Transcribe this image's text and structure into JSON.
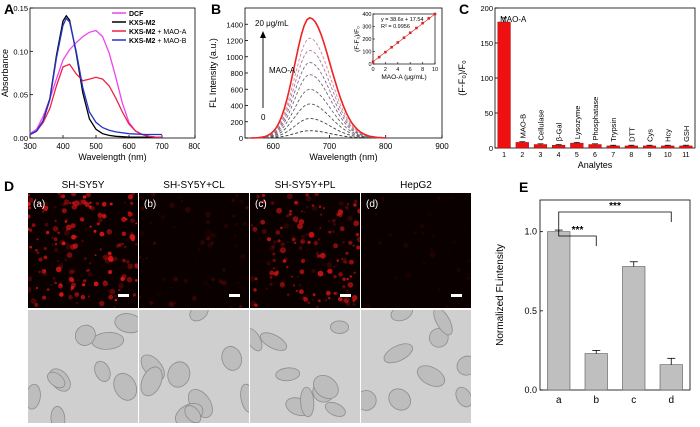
{
  "panel_labels": {
    "a": "A",
    "b": "B",
    "c": "C",
    "d": "D",
    "e": "E"
  },
  "chart_data": [
    {
      "id": "A",
      "type": "line",
      "xlabel": "Wavelength (nm)",
      "ylabel": "Absorbance",
      "xlim": [
        300,
        800
      ],
      "ylim": [
        0,
        0.15
      ],
      "xticks": [
        300,
        400,
        500,
        600,
        700,
        800
      ],
      "yticks": [
        0.0,
        0.05,
        0.1,
        0.15
      ],
      "legend_position": "top-right",
      "legend": [
        {
          "bold": "DCF",
          "rest": ""
        },
        {
          "bold": "KXS-M2",
          "rest": ""
        },
        {
          "bold": "KXS-M2",
          "rest": " + MAO-A"
        },
        {
          "bold": "KXS-M2",
          "rest": " + MAO-B"
        }
      ],
      "colors": [
        "#ee44ee",
        "#000000",
        "#ee2244",
        "#2233cc"
      ],
      "series": [
        {
          "x": [
            300,
            320,
            340,
            360,
            380,
            400,
            420,
            440,
            460,
            480,
            500,
            520,
            540,
            560,
            580,
            600,
            620,
            640,
            660,
            680,
            700
          ],
          "y": [
            0.005,
            0.01,
            0.025,
            0.045,
            0.068,
            0.09,
            0.102,
            0.11,
            0.117,
            0.122,
            0.124,
            0.117,
            0.098,
            0.07,
            0.04,
            0.018,
            0.008,
            0.004,
            0.002,
            0.001,
            0.001
          ]
        },
        {
          "x": [
            300,
            320,
            340,
            360,
            380,
            400,
            410,
            420,
            440,
            460,
            480,
            500,
            520,
            540,
            560,
            600,
            650,
            700
          ],
          "y": [
            0.004,
            0.008,
            0.02,
            0.045,
            0.095,
            0.135,
            0.141,
            0.136,
            0.098,
            0.052,
            0.022,
            0.01,
            0.005,
            0.003,
            0.002,
            0.001,
            0.001,
            0.001
          ]
        },
        {
          "x": [
            300,
            320,
            340,
            360,
            380,
            400,
            420,
            440,
            460,
            480,
            500,
            520,
            540,
            560,
            580,
            600,
            620,
            640,
            660,
            680,
            700
          ],
          "y": [
            0.004,
            0.008,
            0.018,
            0.034,
            0.06,
            0.082,
            0.085,
            0.074,
            0.066,
            0.068,
            0.07,
            0.068,
            0.06,
            0.046,
            0.03,
            0.016,
            0.008,
            0.004,
            0.002,
            0.001,
            0.001
          ]
        },
        {
          "x": [
            300,
            320,
            340,
            360,
            380,
            400,
            410,
            420,
            440,
            460,
            480,
            500,
            520,
            540,
            560,
            600,
            650,
            700
          ],
          "y": [
            0.004,
            0.008,
            0.02,
            0.044,
            0.092,
            0.13,
            0.138,
            0.134,
            0.1,
            0.058,
            0.03,
            0.018,
            0.012,
            0.009,
            0.007,
            0.005,
            0.004,
            0.004
          ]
        }
      ]
    },
    {
      "id": "B",
      "type": "line",
      "xlabel": "Wavelength (nm)",
      "ylabel": "FL Intensity (a.u.)",
      "xlim": [
        550,
        900
      ],
      "ylim": [
        0,
        1600
      ],
      "xticks": [
        600,
        700,
        800,
        900
      ],
      "yticks": [
        0,
        200,
        400,
        600,
        800,
        1000,
        1200,
        1400
      ],
      "annotation_top": "20 μg/mL",
      "annotation_label": "MAO-A",
      "annotation_bottom": "0",
      "peak_x": 665,
      "peak_values": [
        90,
        240,
        420,
        600,
        780,
        930,
        1080,
        1230,
        1480
      ],
      "series_colors": [
        "#333333",
        "#444444",
        "#555555",
        "#666666",
        "#776677",
        "#886688",
        "#aa7799",
        "#cc8899",
        "#ee2222"
      ],
      "inset": {
        "type": "scatter",
        "xlabel": "MAO-A (μg/mL)",
        "ylabel": "(F-F₀)/F₀",
        "equation": "y = 38.6x + 17.54",
        "r2": "R² = 0.9956",
        "xlim": [
          0,
          10
        ],
        "ylim": [
          0,
          400
        ],
        "xticks": [
          0,
          2,
          4,
          6,
          8,
          10
        ],
        "yticks": [
          0,
          100,
          200,
          300,
          400
        ],
        "x": [
          0,
          1,
          2,
          3,
          4,
          5,
          6,
          7,
          8,
          9,
          10
        ],
        "y": [
          18,
          55,
          95,
          134,
          172,
          210,
          250,
          288,
          327,
          365,
          400
        ],
        "point_color": "#dd2222"
      }
    },
    {
      "id": "C",
      "type": "bar",
      "xlabel": "Analytes",
      "ylabel": "(F-F₀)/F₀",
      "ylim": [
        0,
        200
      ],
      "yticks": [
        0,
        50,
        100,
        150,
        200
      ],
      "categories": [
        "1",
        "2",
        "3",
        "4",
        "5",
        "6",
        "7",
        "8",
        "9",
        "10",
        "11"
      ],
      "bar_labels": [
        "MAO-A",
        "MAO-B",
        "Cellulase",
        "β-Gal",
        "Lysozyme",
        "Phosphatase",
        "Trypsin",
        "DTT",
        "Cys",
        "Hcy",
        "GSH"
      ],
      "values": [
        180,
        8,
        5,
        4,
        7,
        5,
        3,
        3,
        3,
        3,
        3
      ],
      "errors": [
        6,
        1,
        1,
        1,
        1,
        1,
        1,
        1,
        1,
        1,
        1
      ],
      "bar_color": "#ee1111"
    },
    {
      "id": "E",
      "type": "bar",
      "xlabel": "",
      "ylabel": "Normalized FLintensity",
      "ylim": [
        0,
        1.2
      ],
      "yticks": [
        0.0,
        0.5,
        1.0
      ],
      "categories": [
        "a",
        "b",
        "c",
        "d"
      ],
      "values": [
        1.0,
        0.23,
        0.78,
        0.16
      ],
      "errors": [
        0.01,
        0.02,
        0.03,
        0.04
      ],
      "bar_color": "#bfbfbf",
      "significance": [
        {
          "from": "a",
          "to": "b",
          "label": "***"
        },
        {
          "from": "a",
          "to": "d",
          "label": "***"
        }
      ]
    }
  ],
  "panel_d": {
    "columns": [
      {
        "title": "SH-SY5Y",
        "sublabel": "(a)",
        "intensity": 1.0
      },
      {
        "title": "SH-SY5Y+CL",
        "sublabel": "(b)",
        "intensity": 0.25
      },
      {
        "title": "SH-SY5Y+PL",
        "sublabel": "(c)",
        "intensity": 0.85
      },
      {
        "title": "HepG2",
        "sublabel": "(d)",
        "intensity": 0.12
      }
    ],
    "fluorescence_color": "#e01515",
    "brightfield_color": "#cfcfcf"
  }
}
